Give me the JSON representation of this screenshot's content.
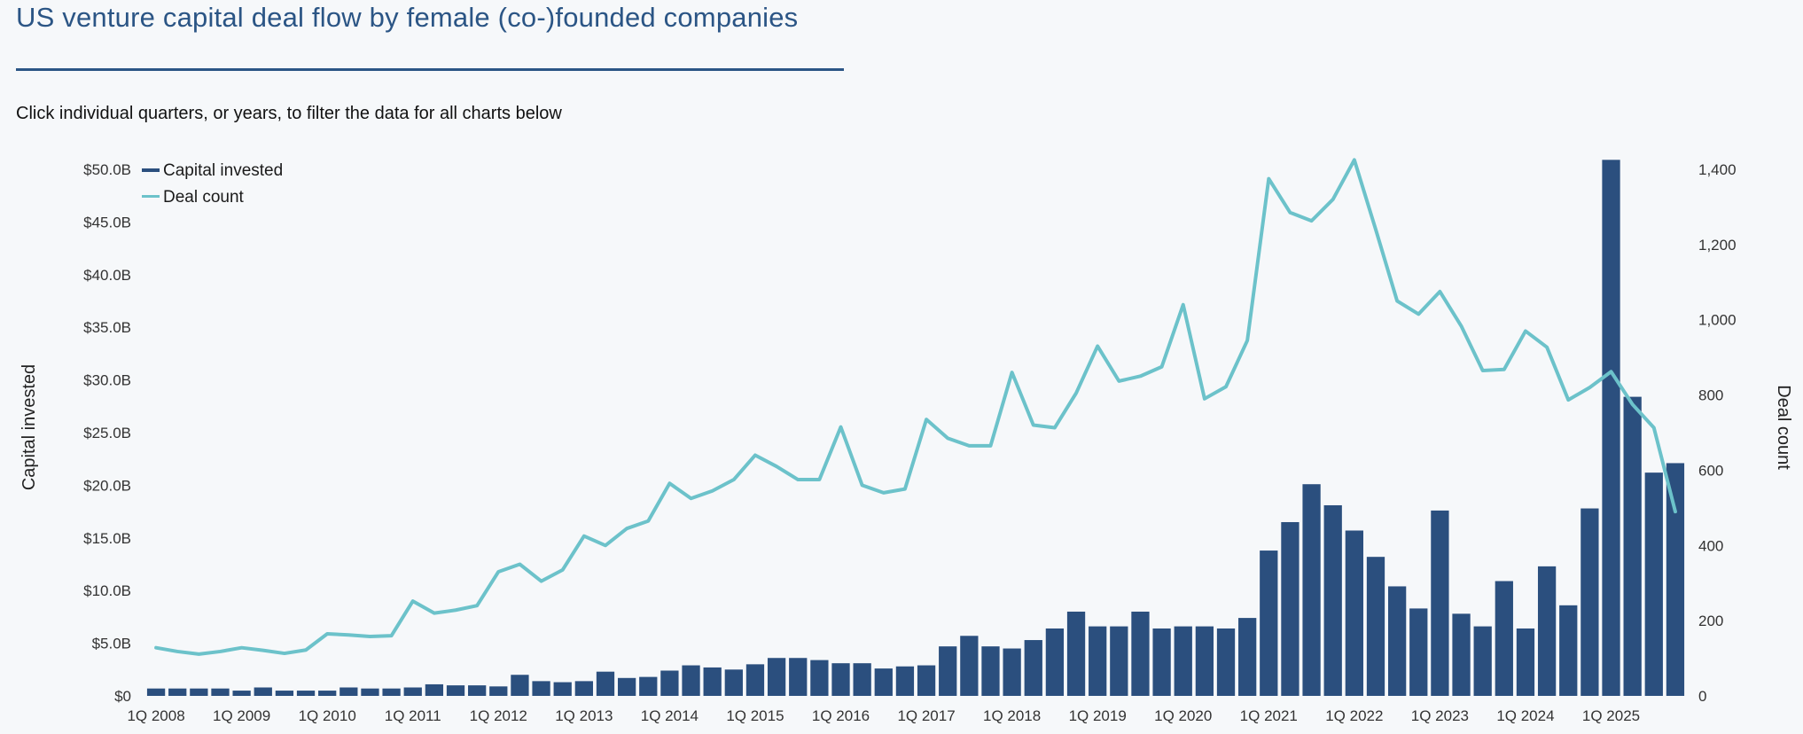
{
  "page": {
    "title": "US venture capital deal flow by female (co-)founded companies",
    "subtitle": "Click individual quarters, or years, to filter the data for all charts below"
  },
  "colors": {
    "bars": "#2b4f7e",
    "line": "#6cc2ca",
    "title": "#2b5585"
  },
  "chart_data": {
    "type": "bar",
    "title": "US venture capital deal flow by female (co-)founded companies",
    "ylabel": "Capital invested",
    "y2label": "Deal count",
    "ylim": [
      0,
      50
    ],
    "y2lim": [
      0,
      1400
    ],
    "yticks": [
      "$0",
      "$5.0B",
      "$10.0B",
      "$15.0B",
      "$20.0B",
      "$25.0B",
      "$30.0B",
      "$35.0B",
      "$40.0B",
      "$45.0B",
      "$50.0B"
    ],
    "y2ticks": [
      "0",
      "200",
      "400",
      "600",
      "800",
      "1,000",
      "1,200",
      "1,400"
    ],
    "xticks": [
      "1Q 2008",
      "1Q 2009",
      "1Q 2010",
      "1Q 2011",
      "1Q 2012",
      "1Q 2013",
      "1Q 2014",
      "1Q 2015",
      "1Q 2016",
      "1Q 2017",
      "1Q 2018",
      "1Q 2019",
      "1Q 2020",
      "1Q 2021",
      "1Q 2022",
      "1Q 2023",
      "1Q 2024",
      "1Q 2025"
    ],
    "legend_position": "top-left",
    "series": [
      {
        "name": "Capital invested",
        "type": "bar",
        "axis": "left",
        "unit": "$B",
        "values": [
          0.7,
          0.7,
          0.7,
          0.7,
          0.5,
          0.8,
          0.5,
          0.5,
          0.5,
          0.8,
          0.7,
          0.7,
          0.8,
          1.1,
          1.0,
          1.0,
          0.9,
          2.0,
          1.4,
          1.3,
          1.4,
          2.3,
          1.7,
          1.8,
          2.4,
          2.9,
          2.7,
          2.5,
          3.0,
          3.6,
          3.6,
          3.4,
          3.1,
          3.1,
          2.6,
          2.8,
          2.9,
          4.7,
          5.7,
          4.7,
          4.5,
          5.3,
          6.4,
          8.0,
          6.6,
          6.6,
          8.0,
          6.4,
          6.6,
          6.6,
          6.4,
          7.4,
          13.8,
          16.5,
          20.1,
          18.1,
          15.7,
          13.2,
          10.4,
          8.3,
          17.6,
          7.8,
          6.6,
          10.9,
          6.4,
          12.3,
          8.6,
          17.8,
          50.9,
          28.4,
          21.2,
          22.1
        ]
      },
      {
        "name": "Deal count",
        "type": "line",
        "axis": "right",
        "values": [
          128,
          118,
          111,
          118,
          128,
          121,
          113,
          122,
          165,
          162,
          158,
          160,
          252,
          220,
          228,
          240,
          330,
          350,
          305,
          335,
          425,
          400,
          445,
          465,
          565,
          525,
          545,
          575,
          640,
          610,
          575,
          575,
          715,
          560,
          540,
          550,
          735,
          685,
          665,
          665,
          860,
          720,
          713,
          805,
          930,
          837,
          850,
          875,
          1040,
          790,
          822,
          945,
          1375,
          1285,
          1263,
          1320,
          1425,
          1240,
          1050,
          1015,
          1075,
          983,
          865,
          868,
          970,
          927,
          787,
          820,
          862,
          775,
          713,
          490
        ]
      }
    ]
  }
}
